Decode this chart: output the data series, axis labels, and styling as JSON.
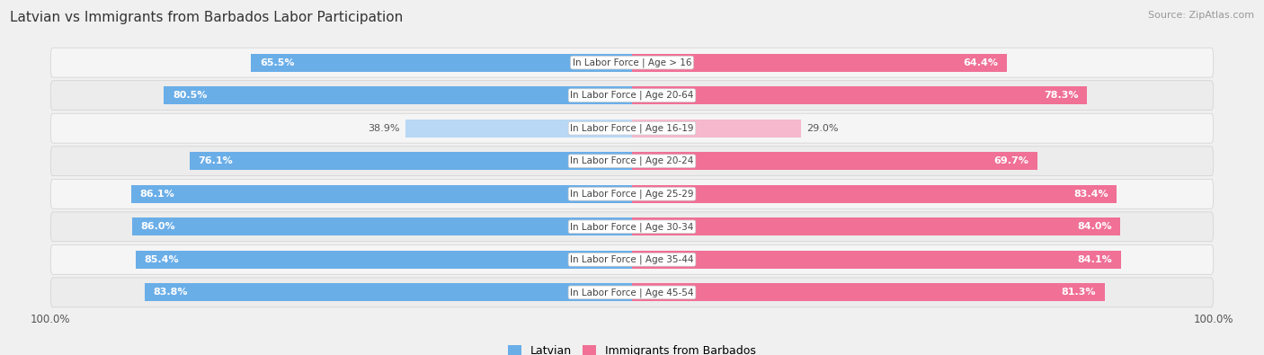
{
  "title": "Latvian vs Immigrants from Barbados Labor Participation",
  "source": "Source: ZipAtlas.com",
  "categories": [
    "In Labor Force | Age > 16",
    "In Labor Force | Age 20-64",
    "In Labor Force | Age 16-19",
    "In Labor Force | Age 20-24",
    "In Labor Force | Age 25-29",
    "In Labor Force | Age 30-34",
    "In Labor Force | Age 35-44",
    "In Labor Force | Age 45-54"
  ],
  "latvian_values": [
    65.5,
    80.5,
    38.9,
    76.1,
    86.1,
    86.0,
    85.4,
    83.8
  ],
  "barbados_values": [
    64.4,
    78.3,
    29.0,
    69.7,
    83.4,
    84.0,
    84.1,
    81.3
  ],
  "latvian_color": "#6aaee8",
  "latvian_color_light": "#b8d8f5",
  "barbados_color": "#f07096",
  "barbados_color_light": "#f5b8cc",
  "row_bg_color": "#e8e8e8",
  "row_inner_bg_even": "#f8f8f8",
  "row_inner_bg_odd": "#efefef",
  "background_color": "#f0f0f0",
  "legend_latvian": "Latvian",
  "legend_barbados": "Immigrants from Barbados",
  "label_fontsize": 8.0,
  "cat_fontsize": 7.5,
  "title_fontsize": 11,
  "bar_height": 0.55,
  "row_padding": 0.12
}
